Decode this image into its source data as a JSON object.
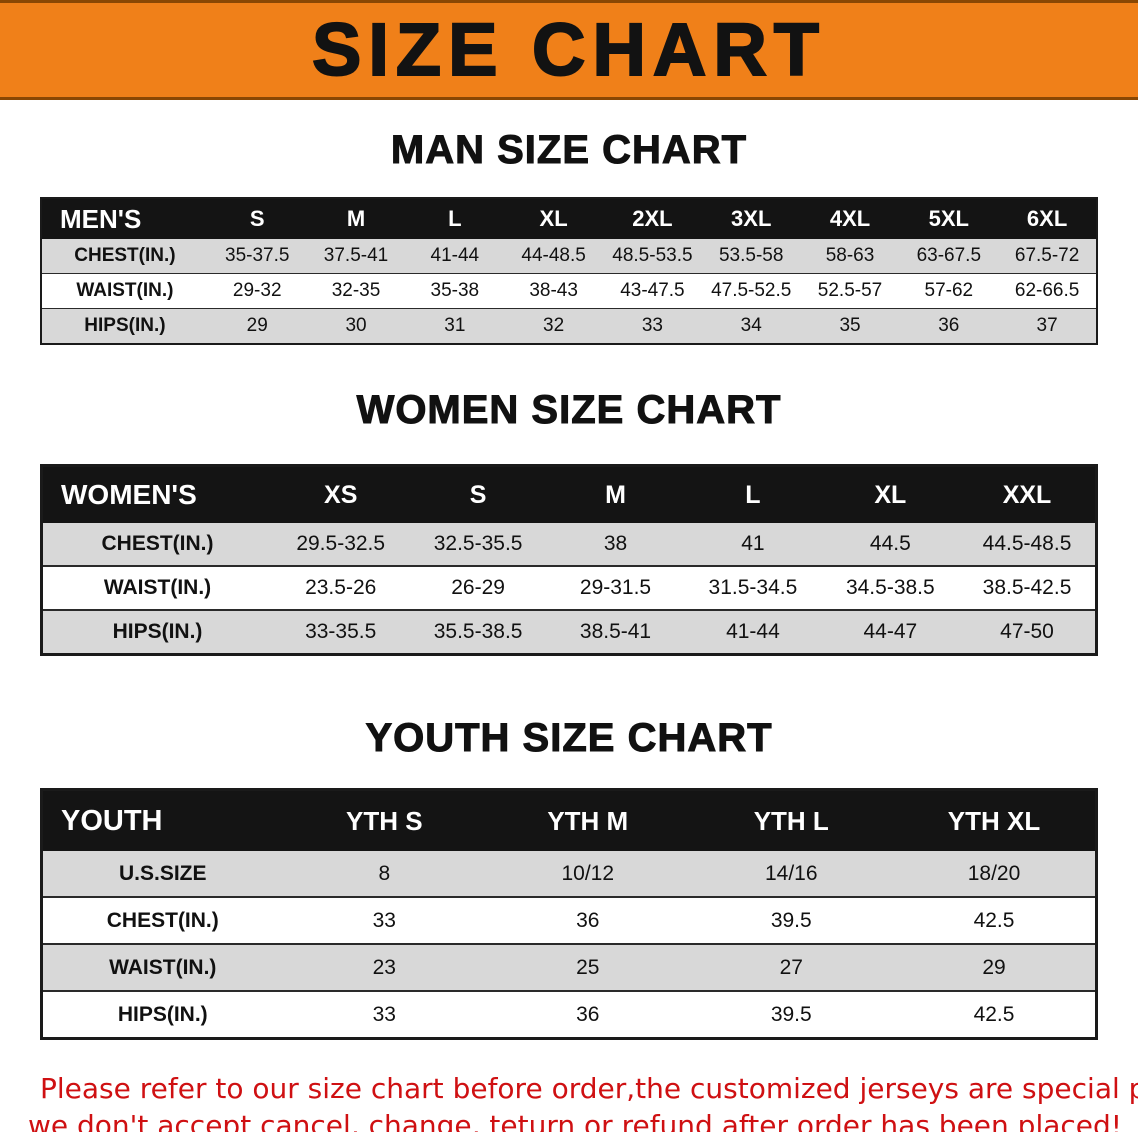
{
  "banner": {
    "title": "SIZE CHART"
  },
  "men": {
    "heading": "MAN SIZE CHART",
    "table": {
      "header": [
        "MEN'S",
        "S",
        "M",
        "L",
        "XL",
        "2XL",
        "3XL",
        "4XL",
        "5XL",
        "6XL"
      ],
      "rows": [
        [
          "CHEST(IN.)",
          "35-37.5",
          "37.5-41",
          "41-44",
          "44-48.5",
          "48.5-53.5",
          "53.5-58",
          "58-63",
          "63-67.5",
          "67.5-72"
        ],
        [
          "WAIST(IN.)",
          "29-32",
          "32-35",
          "35-38",
          "38-43",
          "43-47.5",
          "47.5-52.5",
          "52.5-57",
          "57-62",
          "62-66.5"
        ],
        [
          "HIPS(IN.)",
          "29",
          "30",
          "31",
          "32",
          "33",
          "34",
          "35",
          "36",
          "37"
        ]
      ]
    }
  },
  "women": {
    "heading": "WOMEN SIZE CHART",
    "table": {
      "header": [
        "WOMEN'S",
        "XS",
        "S",
        "M",
        "L",
        "XL",
        "XXL"
      ],
      "rows": [
        [
          "CHEST(IN.)",
          "29.5-32.5",
          "32.5-35.5",
          "38",
          "41",
          "44.5",
          "44.5-48.5"
        ],
        [
          "WAIST(IN.)",
          "23.5-26",
          "26-29",
          "29-31.5",
          "31.5-34.5",
          "34.5-38.5",
          "38.5-42.5"
        ],
        [
          "HIPS(IN.)",
          "33-35.5",
          "35.5-38.5",
          "38.5-41",
          "41-44",
          "44-47",
          "47-50"
        ]
      ]
    }
  },
  "youth": {
    "heading": "YOUTH SIZE CHART",
    "table": {
      "header": [
        "YOUTH",
        "YTH S",
        "YTH M",
        "YTH L",
        "YTH XL"
      ],
      "rows": [
        [
          "U.S.SIZE",
          "8",
          "10/12",
          "14/16",
          "18/20"
        ],
        [
          "CHEST(IN.)",
          "33",
          "36",
          "39.5",
          "42.5"
        ],
        [
          "WAIST(IN.)",
          "23",
          "25",
          "27",
          "29"
        ],
        [
          "HIPS(IN.)",
          "33",
          "36",
          "39.5",
          "42.5"
        ]
      ]
    }
  },
  "footer": {
    "line1": "Please refer to our size chart before order,the customized jerseys are special products,",
    "line2": "we don't accept cancel, change, teturn or refund after order has been placed!"
  },
  "colors": {
    "banner_orange": "#f08019",
    "header_black": "#141414",
    "row_gray": "#d8d8d8",
    "warning_red": "#cf1012"
  }
}
